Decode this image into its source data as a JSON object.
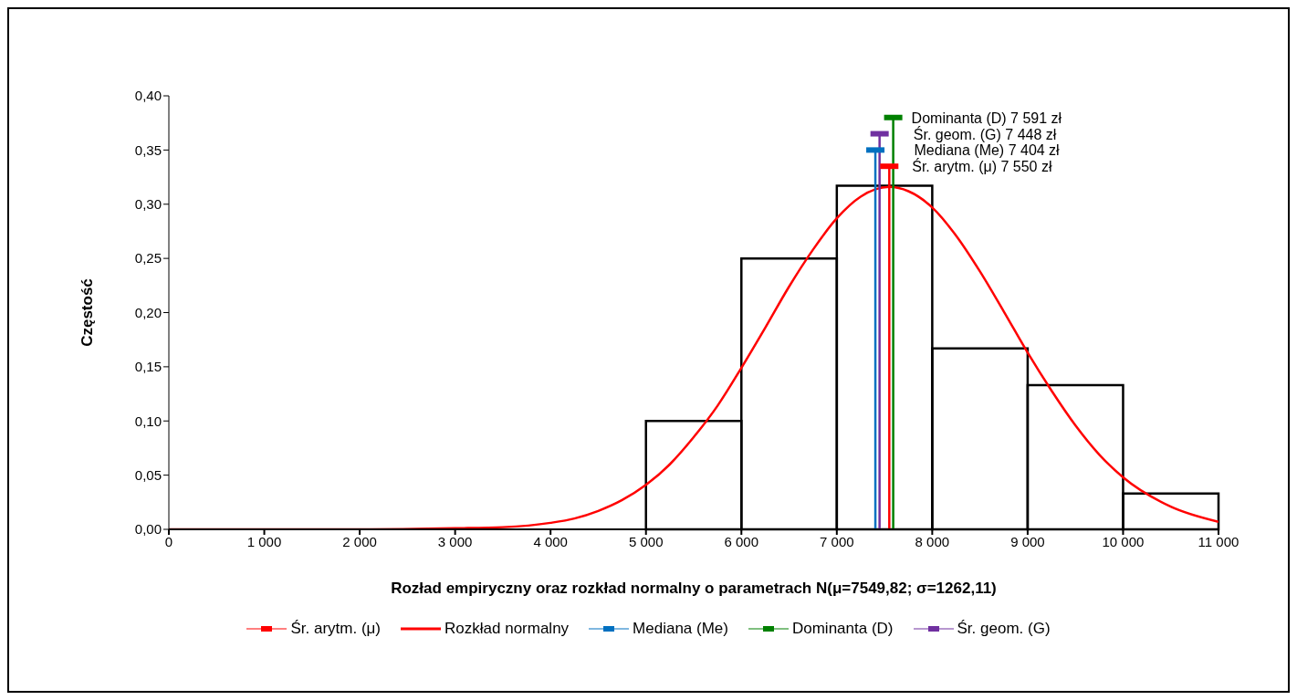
{
  "chart_data": {
    "type": "histogram",
    "xlabel": "Rozład empiryczny oraz rozkład normalny o parametrach N(μ=7549,82; σ=1262,11)",
    "ylabel": "Częstość",
    "bins": [
      5000,
      6000,
      7000,
      8000,
      9000,
      10000,
      11000
    ],
    "values": [
      0.1,
      0.25,
      0.317,
      0.167,
      0.133,
      0.033
    ],
    "color": "#000000",
    "series": [
      {
        "name": "Śr. arytm. (μ)",
        "type": "line",
        "color": "#ff0000",
        "x": [
          7550,
          7550
        ],
        "values": [
          0,
          0.335
        ]
      },
      {
        "name": "Rozkład normalny",
        "type": "line",
        "color": "#ff0000",
        "x": [
          0,
          1000,
          2000,
          3000,
          3500,
          4000,
          4250,
          4500,
          4750,
          5000,
          5250,
          5500,
          5750,
          6000,
          6250,
          6500,
          6750,
          7000,
          7250,
          7550,
          7750,
          8000,
          8250,
          8500,
          8750,
          9000,
          9250,
          9500,
          9750,
          10000,
          10500,
          11000
        ],
        "values": [
          0,
          0,
          0,
          0.001,
          0.002,
          0.006,
          0.01,
          0.017,
          0.027,
          0.041,
          0.06,
          0.085,
          0.114,
          0.149,
          0.186,
          0.224,
          0.258,
          0.287,
          0.307,
          0.316,
          0.312,
          0.297,
          0.271,
          0.238,
          0.201,
          0.163,
          0.128,
          0.096,
          0.069,
          0.048,
          0.021,
          0.007
        ]
      },
      {
        "name": "Mediana (Me)",
        "type": "line",
        "color": "#0070c0",
        "x": [
          7404,
          7404
        ],
        "values": [
          0,
          0.35
        ]
      },
      {
        "name": "Dominanta (D)",
        "type": "line",
        "color": "#008000",
        "x": [
          7591,
          7591
        ],
        "values": [
          0,
          0.38
        ]
      },
      {
        "name": "Śr. geom. (G)",
        "type": "line",
        "color": "#7030a0",
        "x": [
          7448,
          7448
        ],
        "values": [
          0,
          0.365
        ]
      }
    ],
    "annotations": [
      {
        "text": "Dominanta (D) 7 591 zł",
        "x": 7591,
        "y": 0.38
      },
      {
        "text": "Śr. geom. (G) 7 448 zł",
        "x": 7448,
        "y": 0.365
      },
      {
        "text": "Mediana (Me) 7 404 zł",
        "x": 7404,
        "y": 0.35
      },
      {
        "text": "Śr. arytm. (μ) 7 550 zł",
        "x": 7550,
        "y": 0.335
      }
    ],
    "xlim": [
      0,
      11000
    ],
    "xticks": [
      0,
      {
        "value": 1000,
        "label": "1 000"
      },
      {
        "value": 2000,
        "label": "2 000"
      },
      {
        "value": 3000,
        "label": "3 000"
      },
      {
        "value": 4000,
        "label": "4 000"
      },
      {
        "value": 5000,
        "label": "5 000"
      },
      {
        "value": 6000,
        "label": "6 000"
      },
      {
        "value": 7000,
        "label": "7 000"
      },
      {
        "value": 8000,
        "label": "8 000"
      },
      {
        "value": 9000,
        "label": "9 000"
      },
      {
        "value": 10000,
        "label": "10 000"
      },
      {
        "value": 11000,
        "label": "11 000"
      }
    ],
    "ylim": [
      0,
      0.4
    ],
    "yticks": [
      {
        "value": 0,
        "label": "0,00"
      },
      {
        "value": 0.05,
        "label": "0,05"
      },
      {
        "value": 0.1,
        "label": "0,10"
      },
      {
        "value": 0.15,
        "label": "0,15"
      },
      {
        "value": 0.2,
        "label": "0,20"
      },
      {
        "value": 0.25,
        "label": "0,25"
      },
      {
        "value": 0.3,
        "label": "0,30"
      },
      {
        "value": 0.35,
        "label": "0,35"
      },
      {
        "value": 0.4,
        "label": "0,40"
      }
    ],
    "grid": false,
    "legend": "bottom"
  }
}
